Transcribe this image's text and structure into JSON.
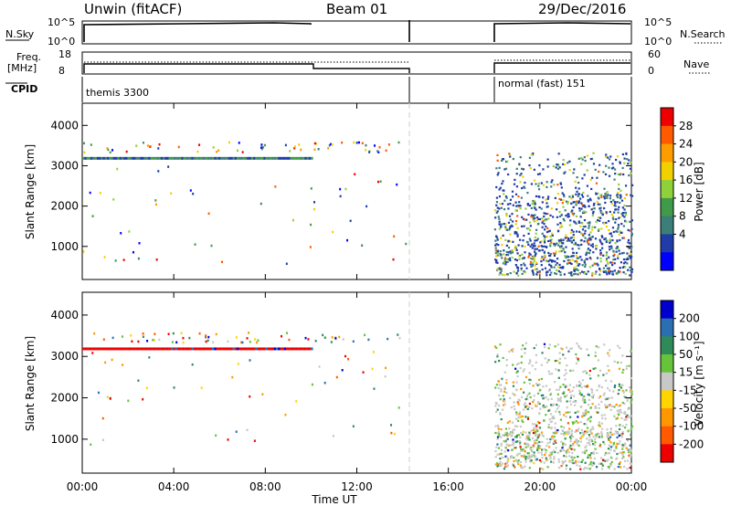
{
  "header": {
    "title": "Unwin (fitACF)",
    "beam": "Beam 01",
    "date": "29/Dec/2016"
  },
  "noise_panel": {
    "left_label": "N.Sky",
    "right_label": "N.Search",
    "left_ticks": [
      "10^5",
      "10^0"
    ],
    "right_ticks": [
      "10^5",
      "10^0"
    ]
  },
  "freq_panel": {
    "left_label_1": "Freq.",
    "left_label_2": "[MHz]",
    "right_label": "Nave",
    "left_ticks": [
      "18",
      "8"
    ],
    "right_ticks": [
      "60",
      "0"
    ]
  },
  "cpid_panel": {
    "label": "CPID",
    "segment_1": "themis 3300",
    "segment_2": "normal (fast) 151"
  },
  "chart_data": [
    {
      "type": "heatmap",
      "name_panel": "power",
      "ylabel": "Slant Range [km]",
      "yticks": [
        1000,
        2000,
        3000,
        4000
      ],
      "ylim": [
        180,
        4550
      ],
      "xlim_hours": [
        0,
        24
      ],
      "xtick_labels": [
        "00:00",
        "04:00",
        "08:00",
        "12:00",
        "16:00",
        "20:00",
        "00:00"
      ],
      "colorbar": {
        "label": "Power [dB]",
        "tick_labels": [
          "28",
          "24",
          "20",
          "16",
          "12",
          "8",
          "4"
        ],
        "colors": [
          "#ee0000",
          "#ff5a00",
          "#ff9c00",
          "#f2d000",
          "#8fd13a",
          "#3f9a4a",
          "#3c7e78",
          "#1f3ca8",
          "#0000ff"
        ]
      }
    },
    {
      "type": "heatmap",
      "name_panel": "velocity",
      "ylabel": "Slant Range [km]",
      "yticks": [
        1000,
        2000,
        3000,
        4000
      ],
      "ylim": [
        180,
        4550
      ],
      "xlim_hours": [
        0,
        24
      ],
      "xtick_labels": [
        "00:00",
        "04:00",
        "08:00",
        "12:00",
        "16:00",
        "20:00",
        "00:00"
      ],
      "xlabel": "Time UT",
      "colorbar": {
        "label": "Velocity [m s⁻¹]",
        "tick_labels": [
          "200",
          "100",
          "50",
          "15",
          "-15",
          "-50",
          "-100",
          "-200"
        ],
        "colors": [
          "#0000cc",
          "#2a6fb0",
          "#2e8b57",
          "#66c33a",
          "#c8c8c8",
          "#ffd400",
          "#ff9800",
          "#ff5a00",
          "#ee0000"
        ]
      }
    }
  ]
}
